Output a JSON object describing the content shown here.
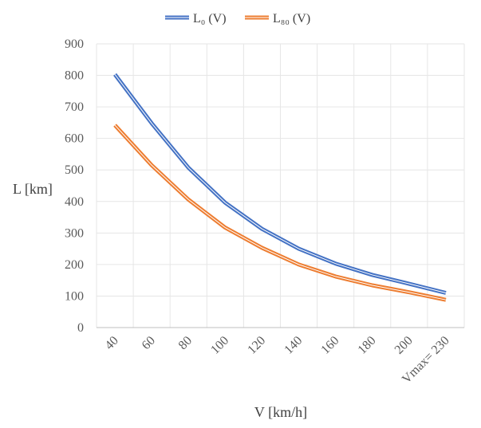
{
  "chart_data": {
    "type": "line",
    "title": "",
    "xlabel": "V [km/h]",
    "ylabel": "L [km]",
    "ylim": [
      0,
      900
    ],
    "yticks": [
      0,
      100,
      200,
      300,
      400,
      500,
      600,
      700,
      800,
      900
    ],
    "categories": [
      "40",
      "60",
      "80",
      "100",
      "120",
      "140",
      "160",
      "180",
      "200",
      "Vmax= 230"
    ],
    "legend_position": "top-center",
    "grid": true,
    "series": [
      {
        "name": "L₀ (V)",
        "color": "#4472C4",
        "values": [
          803,
          648,
          507,
          396,
          313,
          250,
          203,
          167,
          139,
          110
        ]
      },
      {
        "name": "L₈₀ (V)",
        "color": "#ED7D31",
        "values": [
          642,
          515,
          406,
          317,
          253,
          200,
          162,
          134,
          112,
          88
        ]
      }
    ]
  }
}
